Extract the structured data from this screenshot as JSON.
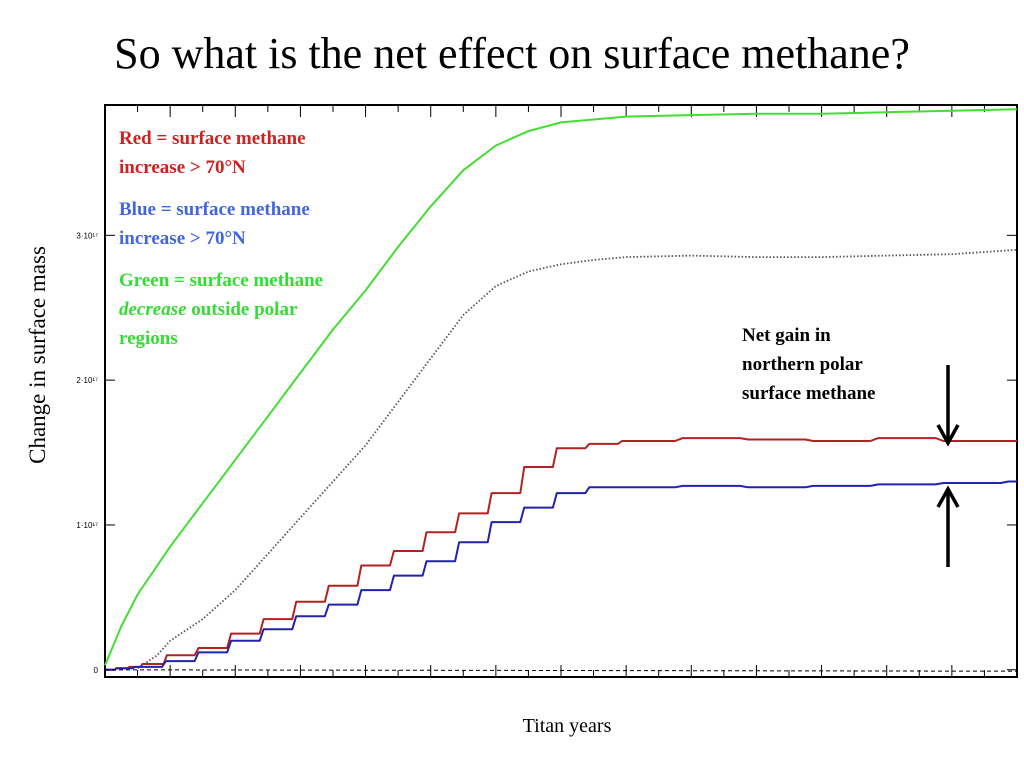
{
  "slide": {
    "title": "So what is the net effect on surface methane?"
  },
  "legend": {
    "red_line1": "Red = surface methane",
    "red_line2": "increase > 70°N",
    "blue_line1": "Blue = surface methane",
    "blue_line2": "increase > 70°N",
    "green_line1": "Green = surface methane",
    "green_italic": "decrease",
    "green_line2_rest": " outside polar",
    "green_line3": "regions"
  },
  "annotation": {
    "line1": "Net gain in",
    "line2": "northern polar",
    "line3": "surface methane"
  },
  "colors": {
    "red": "#b22222",
    "blue": "#2222aa",
    "green": "#44dd33",
    "net": "#555555",
    "red_text": "#cc2222",
    "blue_text": "#4466dd",
    "green_text": "#33dd33"
  },
  "chart_data": {
    "type": "line",
    "title": "",
    "xlabel": "Titan years",
    "ylabel": "Change in surface mass",
    "xlim": [
      0,
      14
    ],
    "ylim": [
      -5000000000000000.0,
      3.9e+17
    ],
    "yticks": [
      0,
      1e+17,
      2e+17,
      3e+17
    ],
    "ytick_labels": [
      "0",
      "1·10¹⁷",
      "2·10¹⁷",
      "3·10¹⁷"
    ],
    "x_minor_ticks": 28,
    "series": [
      {
        "key": "green",
        "style": "solid",
        "x": [
          0,
          0.25,
          0.5,
          1,
          1.5,
          2,
          2.5,
          3,
          3.5,
          4,
          4.5,
          5,
          5.5,
          6,
          6.5,
          7,
          7.5,
          8,
          9,
          10,
          11,
          12,
          13,
          14
        ],
        "y": [
          3000000000000000.0,
          3e+16,
          5.2e+16,
          8.5e+16,
          1.15e+17,
          1.45e+17,
          1.75e+17,
          2.05e+17,
          2.35e+17,
          2.62e+17,
          2.92e+17,
          3.2e+17,
          3.45e+17,
          3.62e+17,
          3.72e+17,
          3.78e+17,
          3.8e+17,
          3.82e+17,
          3.83e+17,
          3.84e+17,
          3.84e+17,
          3.85e+17,
          3.86e+17,
          3.87e+17
        ]
      },
      {
        "key": "net",
        "style": "dotted",
        "x": [
          0.5,
          0.8,
          1,
          1.5,
          2,
          2.5,
          3,
          3.5,
          4,
          4.5,
          5,
          5.5,
          6,
          6.5,
          7,
          7.5,
          8,
          9,
          10,
          11,
          12,
          13,
          14
        ],
        "y": [
          1000000000000000.0,
          1e+16,
          2e+16,
          3.5e+16,
          5.5e+16,
          8e+16,
          1.05e+17,
          1.3e+17,
          1.55e+17,
          1.85e+17,
          2.15e+17,
          2.45e+17,
          2.65e+17,
          2.75e+17,
          2.8e+17,
          2.83e+17,
          2.85e+17,
          2.86e+17,
          2.85e+17,
          2.85e+17,
          2.86e+17,
          2.87e+17,
          2.9e+17
        ]
      },
      {
        "key": "red",
        "style": "stair",
        "x": [
          0,
          0.2,
          0.4,
          0.6,
          1,
          1.5,
          2,
          2.5,
          3,
          3.5,
          4,
          4.5,
          5,
          5.5,
          6,
          6.5,
          7,
          7.5,
          8,
          9,
          10,
          11,
          12,
          13,
          14
        ],
        "y": [
          0,
          1000000000000000.0,
          2000000000000000.0,
          4000000000000000.0,
          1e+16,
          1.5e+16,
          2.5e+16,
          3.5e+16,
          4.7e+16,
          5.8e+16,
          7.2e+16,
          8.2e+16,
          9.5e+16,
          1.08e+17,
          1.22e+17,
          1.4e+17,
          1.53e+17,
          1.56e+17,
          1.58e+17,
          1.6e+17,
          1.59e+17,
          1.58e+17,
          1.6e+17,
          1.58e+17,
          1.58e+17
        ]
      },
      {
        "key": "blue",
        "style": "stair",
        "x": [
          0,
          0.2,
          0.5,
          1,
          1.5,
          2,
          2.5,
          3,
          3.5,
          4,
          4.5,
          5,
          5.5,
          6,
          6.5,
          7,
          7.5,
          8,
          9,
          10,
          11,
          12,
          13,
          14
        ],
        "y": [
          0,
          1000000000000000.0,
          2000000000000000.0,
          6000000000000000.0,
          1.2e+16,
          2e+16,
          2.8e+16,
          3.7e+16,
          4.5e+16,
          5.5e+16,
          6.5e+16,
          7.5e+16,
          8.8e+16,
          1.02e+17,
          1.12e+17,
          1.22e+17,
          1.26e+17,
          1.26e+17,
          1.27e+17,
          1.26e+17,
          1.27e+17,
          1.28e+17,
          1.29e+17,
          1.3e+17
        ]
      },
      {
        "key": "zero",
        "style": "dashed",
        "x": [
          0,
          14
        ],
        "y": [
          0,
          -1000000000000000.0
        ]
      }
    ]
  }
}
